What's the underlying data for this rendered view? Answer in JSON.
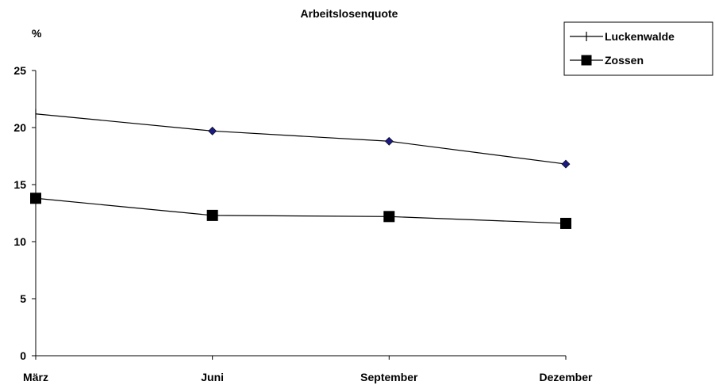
{
  "chart_data": {
    "type": "line",
    "title": "Arbeitslosenquote",
    "ylabel": "%",
    "xlabel": "",
    "categories": [
      "März",
      "Juni",
      "September",
      "Dezember"
    ],
    "ylim": [
      0,
      25
    ],
    "yticks": [
      0,
      5,
      10,
      15,
      20,
      25
    ],
    "grid": false,
    "legend_position": "top-right",
    "series": [
      {
        "name": "Luckenwalde",
        "values": [
          21.2,
          19.7,
          18.8,
          16.8
        ],
        "color": "#000000",
        "marker": "diamond",
        "marker_color": "#1a1a80"
      },
      {
        "name": "Zossen",
        "values": [
          13.8,
          12.3,
          12.2,
          11.6
        ],
        "color": "#000000",
        "marker": "square",
        "marker_color": "#000000"
      }
    ]
  }
}
